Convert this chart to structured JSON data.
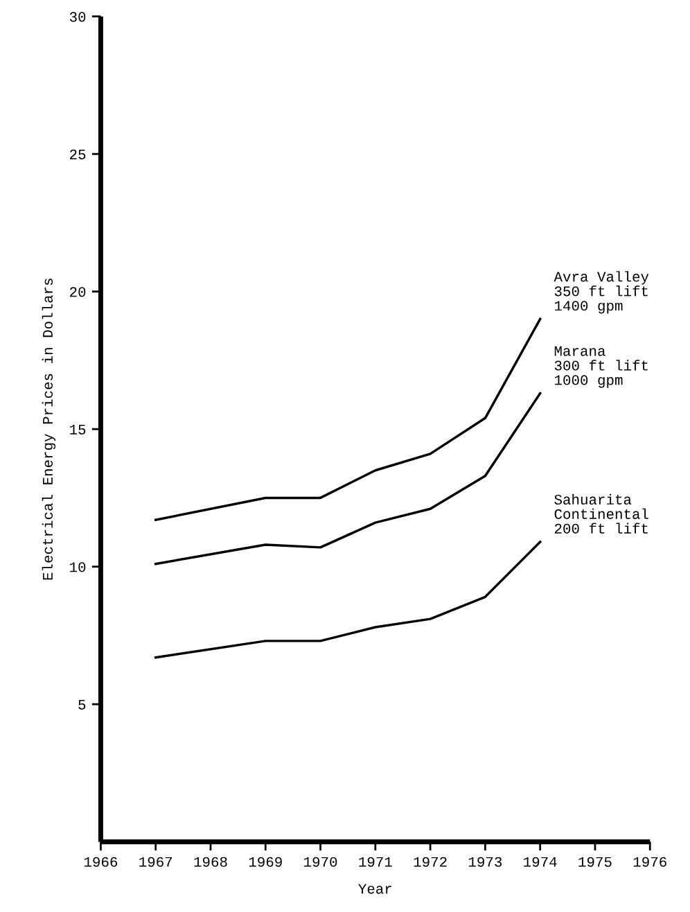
{
  "chart_data": {
    "type": "line",
    "xlabel": "Year",
    "ylabel": "Electrical Energy Prices in Dollars",
    "x": [
      1967,
      1969,
      1970,
      1971,
      1972,
      1973,
      1974
    ],
    "series": [
      {
        "name": "Avra Valley\n350 ft lift\n1400 gpm",
        "color": "#000000",
        "values": [
          11.7,
          12.5,
          12.5,
          13.5,
          14.1,
          15.4,
          19.0
        ]
      },
      {
        "name": "Marana\n300 ft lift\n1000 gpm",
        "color": "#000000",
        "values": [
          10.1,
          10.8,
          10.7,
          11.6,
          12.1,
          13.3,
          16.3
        ]
      },
      {
        "name": "Sahuarita\nContinental\n200 ft lift",
        "color": "#000000",
        "values": [
          6.7,
          7.3,
          7.3,
          7.8,
          8.1,
          8.9,
          10.9
        ]
      }
    ],
    "xlim": [
      1966,
      1976
    ],
    "xticks": [
      1966,
      1967,
      1968,
      1969,
      1970,
      1971,
      1972,
      1973,
      1974,
      1975,
      1976
    ],
    "ylim": [
      0,
      30
    ],
    "yticks": [
      5,
      10,
      15,
      20,
      25,
      30
    ],
    "grid": false,
    "legend": false,
    "marker": "none",
    "line_style": "solid"
  }
}
